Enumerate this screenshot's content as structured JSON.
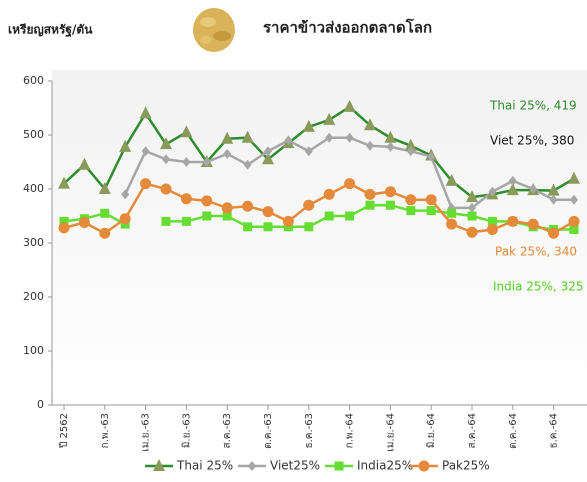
{
  "chart_data": {
    "type": "line",
    "title": "ราคาข้าวส่งออกตลาดโลก",
    "y_label": "เหรียญสหรัฐ/ตัน",
    "categories": [
      "ปี 2562",
      null,
      "ก.พ.-63",
      null,
      "เม.ย.-63",
      null,
      "มิ.ย.-63",
      null,
      "ส.ค.-63",
      null,
      "ต.ค.-63",
      null,
      "ธ.ค.-63",
      null,
      "ก.พ.-64",
      null,
      "เม.ย.-64",
      null,
      "มิ.ย.-64",
      null,
      "ส.ค.-64",
      null,
      "ต.ค.-64",
      null,
      "ธ.ค.-64",
      null
    ],
    "series": [
      {
        "name": "Thai 25%",
        "color": "#2e8b2e",
        "marker_color": "#8a9a5b",
        "marker": "triangle",
        "values": [
          410,
          445,
          400,
          478,
          540,
          483,
          505,
          450,
          493,
          495,
          455,
          485,
          515,
          528,
          552,
          518,
          495,
          480,
          462,
          415,
          385,
          390,
          398,
          398,
          397,
          419
        ]
      },
      {
        "name": "Viet25%",
        "color": "#a6a6a6",
        "marker_color": "#a6a6a6",
        "marker": "diamond",
        "values": [
          null,
          null,
          null,
          390,
          470,
          455,
          450,
          450,
          465,
          445,
          470,
          490,
          470,
          495,
          495,
          480,
          478,
          470,
          460,
          365,
          365,
          395,
          415,
          400,
          380,
          380
        ]
      },
      {
        "name": "India25%",
        "color": "#66dd33",
        "marker_color": "#66dd33",
        "marker": "square",
        "values": [
          340,
          345,
          355,
          335,
          null,
          340,
          340,
          350,
          350,
          330,
          330,
          330,
          330,
          350,
          350,
          370,
          370,
          360,
          360,
          355,
          350,
          340,
          340,
          330,
          325,
          325
        ]
      },
      {
        "name": "Pak25%",
        "color": "#e58a3a",
        "marker_color": "#e58a3a",
        "marker": "circle",
        "values": [
          328,
          338,
          318,
          345,
          410,
          400,
          382,
          378,
          365,
          368,
          358,
          340,
          370,
          390,
          410,
          390,
          395,
          380,
          380,
          335,
          320,
          325,
          340,
          335,
          318,
          340
        ]
      }
    ],
    "annotations": [
      {
        "text": "Thai 25%, 419",
        "color": "#2e8b2e"
      },
      {
        "text": "Viet 25%, 380",
        "color": "#111111"
      },
      {
        "text": "Pak 25%, 340",
        "color": "#e58a3a"
      },
      {
        "text": "India 25%, 325",
        "color": "#55cc22"
      }
    ],
    "ylim": [
      0,
      600
    ],
    "yticks": [
      0,
      100,
      200,
      300,
      400,
      500,
      600
    ],
    "grid": false,
    "legend": "bottom"
  }
}
